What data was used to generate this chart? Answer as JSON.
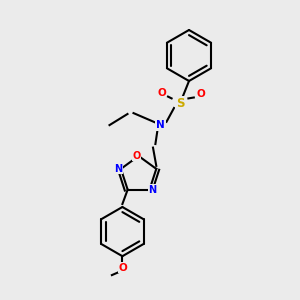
{
  "background_color": "#ebebeb",
  "bond_color": "#000000",
  "figsize": [
    3.0,
    3.0
  ],
  "dpi": 100,
  "lw": 1.5,
  "colors": {
    "N": "#0000ff",
    "O": "#ff0000",
    "S": "#ccaa00",
    "C": "#000000"
  },
  "font_size": 7.5
}
